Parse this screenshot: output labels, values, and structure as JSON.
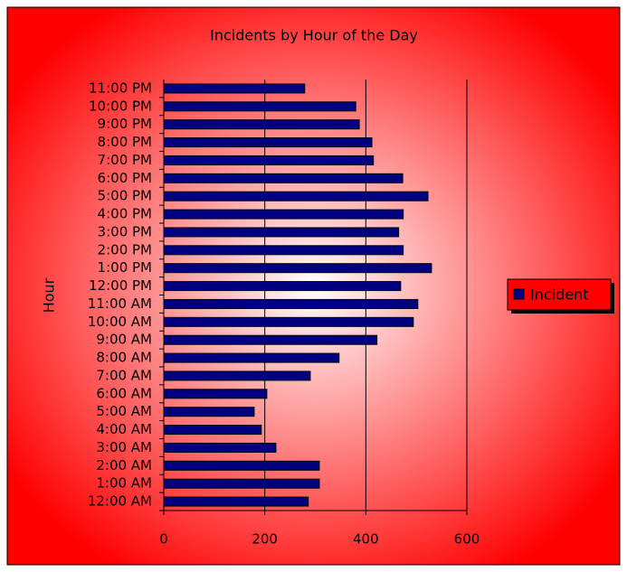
{
  "chart_data": {
    "type": "bar",
    "orientation": "horizontal",
    "title": "Incidents by Hour of the Day",
    "y_label": "Hour",
    "categories": [
      "12:00 AM",
      "1:00 AM",
      "2:00 AM",
      "3:00 AM",
      "4:00 AM",
      "5:00 AM",
      "6:00 AM",
      "7:00 AM",
      "8:00 AM",
      "9:00 AM",
      "10:00 AM",
      "11:00 AM",
      "12:00 PM",
      "1:00 PM",
      "2:00 PM",
      "3:00 PM",
      "4:00 PM",
      "5:00 PM",
      "6:00 PM",
      "7:00 PM",
      "8:00 PM",
      "9:00 PM",
      "10:00 PM",
      "11:00 PM"
    ],
    "series": [
      {
        "name": "Incident",
        "color": "#000080",
        "values": [
          286,
          308,
          308,
          222,
          193,
          179,
          204,
          290,
          347,
          422,
          494,
          503,
          469,
          530,
          474,
          465,
          474,
          523,
          473,
          415,
          412,
          387,
          380,
          279
        ]
      }
    ],
    "xlim": [
      0,
      600
    ],
    "xticks": [
      0,
      200,
      400,
      600
    ],
    "grid": true,
    "legend": "right"
  }
}
